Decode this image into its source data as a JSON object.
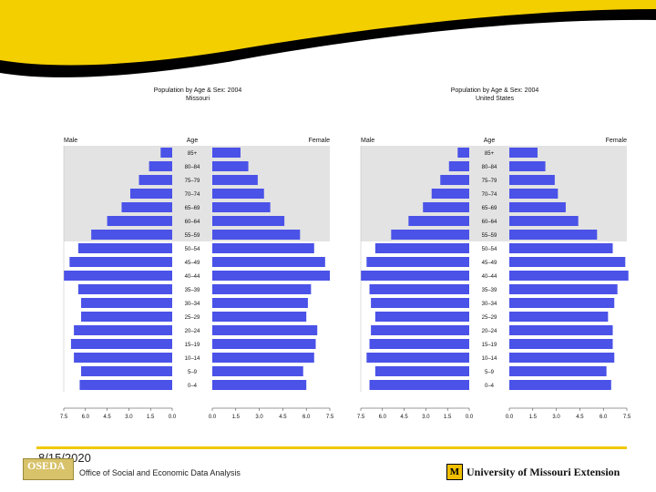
{
  "colors": {
    "bar": "#4a52e8",
    "older_band": "#e3e3e3",
    "banner_yellow": "#f4cf00",
    "banner_black": "#000000",
    "footer_line": "#f0c800"
  },
  "chart_data": [
    {
      "type": "bar",
      "title": "Population by Age & Sex: 2004",
      "subtitle": "Missouri",
      "left_label": "Male",
      "center_label": "Age",
      "right_label": "Female",
      "categories": [
        "85+",
        "80–84",
        "75–79",
        "70–74",
        "65–69",
        "60–64",
        "55–59",
        "50–54",
        "45–49",
        "40–44",
        "35–39",
        "30–34",
        "25–29",
        "20–24",
        "15–19",
        "10–14",
        "5–9",
        "0–4"
      ],
      "series": [
        {
          "name": "Male",
          "values": [
            0.8,
            1.6,
            2.3,
            2.9,
            3.5,
            4.5,
            5.6,
            6.5,
            7.1,
            7.5,
            6.5,
            6.3,
            6.3,
            6.8,
            7.0,
            6.8,
            6.3,
            6.4
          ]
        },
        {
          "name": "Female",
          "values": [
            1.8,
            2.3,
            2.9,
            3.3,
            3.7,
            4.6,
            5.6,
            6.5,
            7.2,
            7.5,
            6.3,
            6.1,
            6.0,
            6.7,
            6.6,
            6.5,
            5.8,
            6.0
          ]
        }
      ],
      "xlim": [
        0,
        7.5
      ],
      "xticks_left": [
        "7.5",
        "6.0",
        "4.5",
        "3.0",
        "1.5",
        "0.0"
      ],
      "xticks_right": [
        "0.0",
        "1.5",
        "3.0",
        "4.5",
        "6.0",
        "7.5"
      ]
    },
    {
      "type": "bar",
      "title": "Population by Age & Sex: 2004",
      "subtitle": "United States",
      "left_label": "Male",
      "center_label": "Age",
      "right_label": "Female",
      "categories": [
        "85+",
        "80–84",
        "75–79",
        "70–74",
        "65–69",
        "60–64",
        "55–59",
        "50–54",
        "45–49",
        "40–44",
        "35–39",
        "30–34",
        "25–29",
        "20–24",
        "15–19",
        "10–14",
        "5–9",
        "0–4"
      ],
      "series": [
        {
          "name": "Male",
          "values": [
            0.8,
            1.4,
            2.0,
            2.6,
            3.2,
            4.2,
            5.4,
            6.5,
            7.1,
            7.5,
            6.9,
            6.8,
            6.5,
            6.8,
            6.9,
            7.1,
            6.5,
            6.9
          ]
        },
        {
          "name": "Female",
          "values": [
            1.8,
            2.3,
            2.9,
            3.1,
            3.6,
            4.4,
            5.6,
            6.6,
            7.4,
            7.6,
            6.9,
            6.7,
            6.3,
            6.6,
            6.6,
            6.7,
            6.2,
            6.5
          ]
        }
      ],
      "xlim": [
        0,
        7.5
      ],
      "xticks_left": [
        "7.5",
        "6.0",
        "4.5",
        "3.0",
        "1.5",
        "0.0"
      ],
      "xticks_right": [
        "0.0",
        "1.5",
        "3.0",
        "4.5",
        "6.0",
        "7.5"
      ]
    }
  ],
  "footer": {
    "date": "8/15/2020",
    "logo_text": "OSEDA",
    "office": "Office of Social and Economic Data Analysis",
    "um_mark": "M",
    "um_text": "University of Missouri Extension"
  }
}
